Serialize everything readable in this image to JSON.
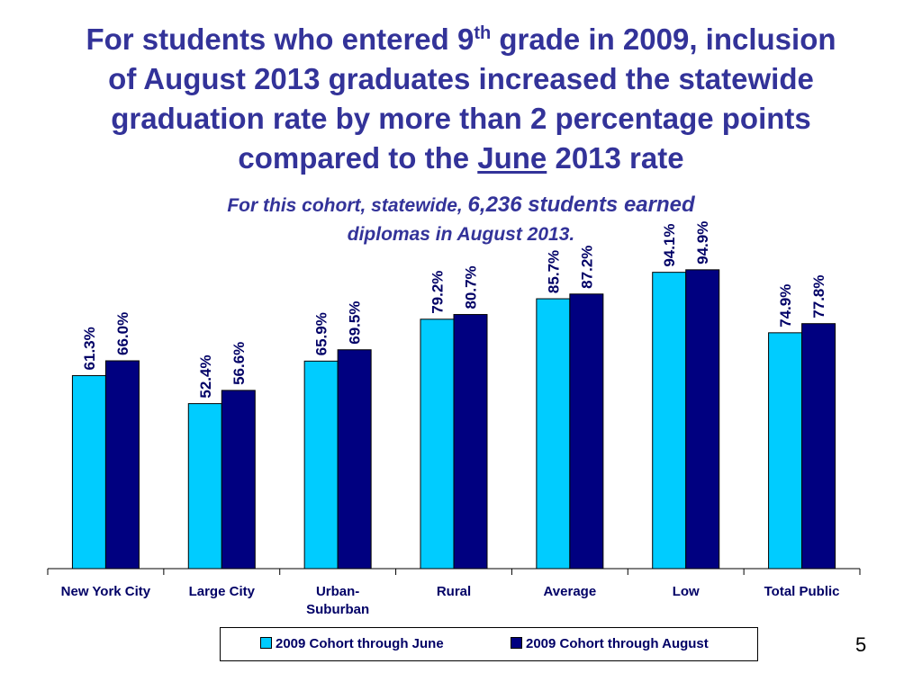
{
  "slide": {
    "title_line1_a": "For students who entered 9",
    "title_sup": "th",
    "title_line1_b": " grade in 2009, inclusion",
    "title_line2": "of August 2013 graduates increased the statewide",
    "title_line3": "graduation rate by more than 2 percentage points",
    "title_line4_a": "compared to the ",
    "title_line4_u": "June",
    "title_line4_b": " 2013 rate",
    "subtitle_a": "For this cohort, statewide, ",
    "subtitle_b": "6,236 students earned",
    "subtitle_c": "diplomas in August 2013.",
    "page_number": "5"
  },
  "colors": {
    "title": "#333399",
    "june": "#00CCFF",
    "august": "#000080",
    "label": "#000066"
  },
  "chart_data": {
    "type": "bar",
    "categories": [
      [
        "New York City"
      ],
      [
        "Large City"
      ],
      [
        "Urban-",
        "Suburban"
      ],
      [
        "Rural"
      ],
      [
        "Average"
      ],
      [
        "Low"
      ],
      [
        "Total Public"
      ]
    ],
    "series": [
      {
        "name": "2009 Cohort through June",
        "values": [
          61.3,
          52.4,
          65.9,
          79.2,
          85.7,
          94.1,
          74.9
        ],
        "labels": [
          "61.3%",
          "52.4%",
          "65.9%",
          "79.2%",
          "85.7%",
          "94.1%",
          "74.9%"
        ]
      },
      {
        "name": "2009 Cohort through August",
        "values": [
          66.0,
          56.6,
          69.5,
          80.7,
          87.2,
          94.9,
          77.8
        ],
        "labels": [
          "66.0%",
          "56.6%",
          "69.5%",
          "80.7%",
          "87.2%",
          "94.9%",
          "77.8%"
        ]
      }
    ],
    "ylim": [
      0,
      100
    ],
    "legend": "bottom",
    "grid": false
  }
}
